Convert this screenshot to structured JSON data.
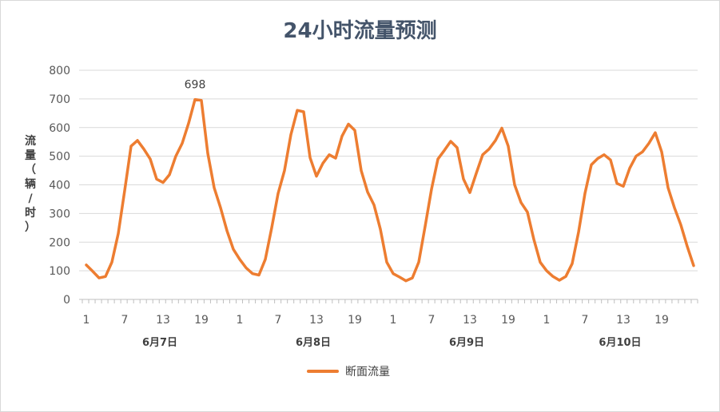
{
  "chart_data": {
    "type": "line",
    "title": "24小时流量预测",
    "ylabel": "流量（辆/时）",
    "ylim": [
      0,
      800
    ],
    "yticks": [
      0,
      100,
      200,
      300,
      400,
      500,
      600,
      700,
      800
    ],
    "grid": true,
    "legend_position": "bottom",
    "x_tick_labels": [
      "1",
      "7",
      "13",
      "19",
      "1",
      "7",
      "13",
      "19",
      "1",
      "7",
      "13",
      "19",
      "1",
      "7",
      "13",
      "19"
    ],
    "x_tick_hours": [
      1,
      7,
      13,
      19,
      25,
      31,
      37,
      43,
      49,
      55,
      61,
      67,
      73,
      79,
      85,
      91
    ],
    "day_labels": [
      "6月7日",
      "6月8日",
      "6月9日",
      "6月10日"
    ],
    "series": [
      {
        "name": "断面流量",
        "color": "#ed7d31",
        "values": [
          120,
          98,
          75,
          80,
          130,
          230,
          380,
          535,
          555,
          525,
          490,
          420,
          408,
          435,
          500,
          545,
          615,
          698,
          695,
          510,
          390,
          320,
          240,
          175,
          140,
          110,
          90,
          85,
          140,
          250,
          370,
          450,
          575,
          660,
          655,
          495,
          430,
          475,
          505,
          493,
          570,
          612,
          590,
          450,
          375,
          330,
          245,
          130,
          90,
          78,
          65,
          75,
          130,
          255,
          385,
          490,
          520,
          552,
          530,
          420,
          373,
          440,
          505,
          525,
          555,
          598,
          535,
          400,
          338,
          305,
          210,
          130,
          100,
          80,
          67,
          80,
          125,
          235,
          370,
          470,
          492,
          505,
          487,
          405,
          395,
          458,
          500,
          515,
          545,
          582,
          515,
          390,
          320,
          260,
          185,
          118
        ]
      }
    ],
    "annotations": [
      {
        "text": "698",
        "series": 0,
        "index": 17
      }
    ]
  },
  "legend": {
    "label": "断面流量"
  }
}
